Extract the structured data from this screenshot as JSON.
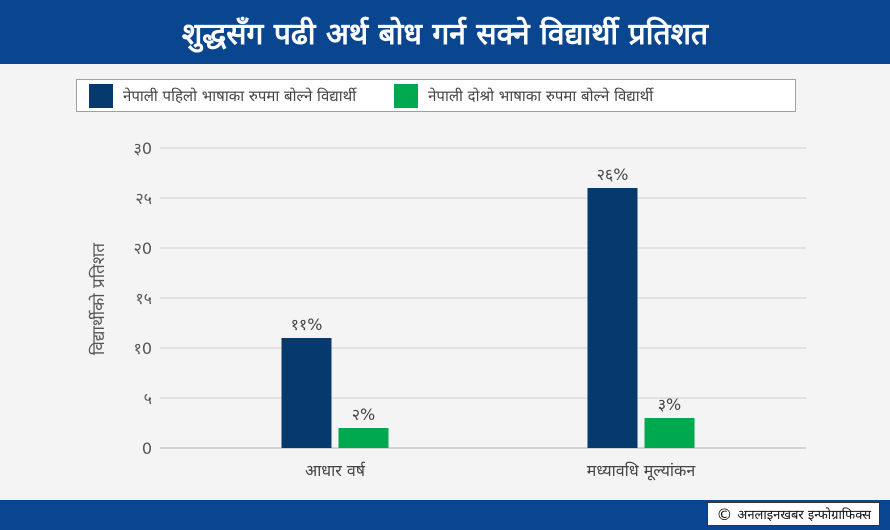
{
  "header": {
    "title": "शुद्धसँग पढी अर्थ बोध गर्न सक्ने विद्यार्थी प्रतिशत"
  },
  "colors": {
    "header_bg": "#0a4590",
    "series1": "#063a6e",
    "series2": "#00a850",
    "grid": "#cfcfcf"
  },
  "chart_data": {
    "type": "bar",
    "title": "शुद्धसँग पढी अर्थ बोध गर्न सक्ने विद्यार्थी प्रतिशत",
    "ylabel": "विद्यार्थीको प्रतिशत",
    "xlabel": "",
    "categories": [
      "आधार वर्ष",
      "मध्यावधि मूल्यांकन"
    ],
    "series": [
      {
        "name": "नेपाली पहिलो भाषाका रुपमा बोल्ने विद्यार्थी",
        "values": [
          11,
          26
        ],
        "labels": [
          "११%",
          "२६%"
        ]
      },
      {
        "name": "नेपाली दोश्रो भाषाका रुपमा बोल्ने विद्यार्थी",
        "values": [
          2,
          3
        ],
        "labels": [
          "२%",
          "३%"
        ]
      }
    ],
    "ylim": [
      0,
      30
    ],
    "yticks": [
      0,
      5,
      10,
      15,
      20,
      25,
      30
    ],
    "ytick_labels": [
      "0",
      "५",
      "१0",
      "१५",
      "२0",
      "२५",
      "३0"
    ],
    "grid": true,
    "legend": "top"
  },
  "credit": {
    "icon": "copyright-icon",
    "text": "अनलाइनखबर इन्फोग्राफिक्स"
  }
}
